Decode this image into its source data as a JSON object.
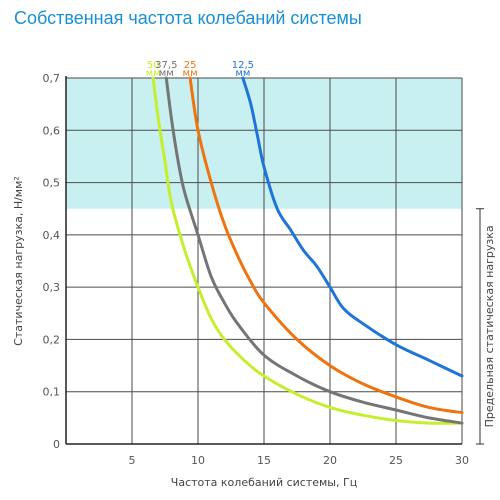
{
  "chart_data": {
    "type": "line",
    "title": "Собственная частота колебаний системы",
    "xlabel": "Частота колебаний системы, Гц",
    "ylabel": "Статическая нагрузка, Н/мм²",
    "xlim": [
      0,
      30
    ],
    "ylim": [
      0,
      0.7
    ],
    "x_ticks": [
      "5",
      "10",
      "15",
      "20",
      "25",
      "30"
    ],
    "y_ticks": [
      "0",
      "0,1",
      "0,2",
      "0,3",
      "0,4",
      "0,5",
      "0,6",
      "0,7"
    ],
    "grid": true,
    "shaded_band": {
      "from": 0.45,
      "to": 0.7,
      "color": "#c8f0f0"
    },
    "bracket": {
      "from": 0,
      "to": 0.45,
      "label": "Предельная статическая нагрузка"
    },
    "series": [
      {
        "name": "50",
        "unit": "мм",
        "color": "#c6ee2f",
        "x": [
          6.6,
          7.0,
          7.5,
          8.0,
          9.0,
          10.0,
          11.0,
          12.0,
          13.5,
          15.0,
          17.5,
          20.0,
          22.5,
          25.0,
          27.5,
          30.0
        ],
        "y": [
          0.7,
          0.62,
          0.54,
          0.46,
          0.37,
          0.3,
          0.24,
          0.2,
          0.16,
          0.13,
          0.095,
          0.07,
          0.055,
          0.045,
          0.04,
          0.04
        ]
      },
      {
        "name": "37,5",
        "unit": "мм",
        "color": "#757575",
        "x": [
          7.6,
          8.0,
          8.5,
          9.0,
          10.0,
          11.0,
          12.0,
          13.0,
          15.0,
          17.5,
          20.0,
          22.5,
          25.0,
          27.5,
          30.0
        ],
        "y": [
          0.7,
          0.62,
          0.54,
          0.48,
          0.4,
          0.32,
          0.27,
          0.23,
          0.17,
          0.13,
          0.1,
          0.08,
          0.065,
          0.05,
          0.04
        ]
      },
      {
        "name": "25",
        "unit": "мм",
        "color": "#f0730f",
        "x": [
          9.4,
          10.0,
          11.0,
          12.0,
          13.0,
          14.0,
          15.0,
          17.5,
          20.0,
          22.5,
          25.0,
          27.5,
          30.0
        ],
        "y": [
          0.7,
          0.6,
          0.5,
          0.42,
          0.36,
          0.31,
          0.27,
          0.2,
          0.15,
          0.115,
          0.09,
          0.07,
          0.06
        ]
      },
      {
        "name": "12,5",
        "unit": "мм",
        "color": "#1e74d8",
        "x": [
          13.4,
          14.0,
          14.5,
          15.0,
          16.0,
          17.0,
          18.0,
          19.0,
          20.0,
          21.0,
          22.5,
          25.0,
          27.5,
          30.0
        ],
        "y": [
          0.7,
          0.65,
          0.59,
          0.53,
          0.45,
          0.41,
          0.37,
          0.34,
          0.3,
          0.26,
          0.23,
          0.19,
          0.16,
          0.13
        ]
      }
    ]
  }
}
